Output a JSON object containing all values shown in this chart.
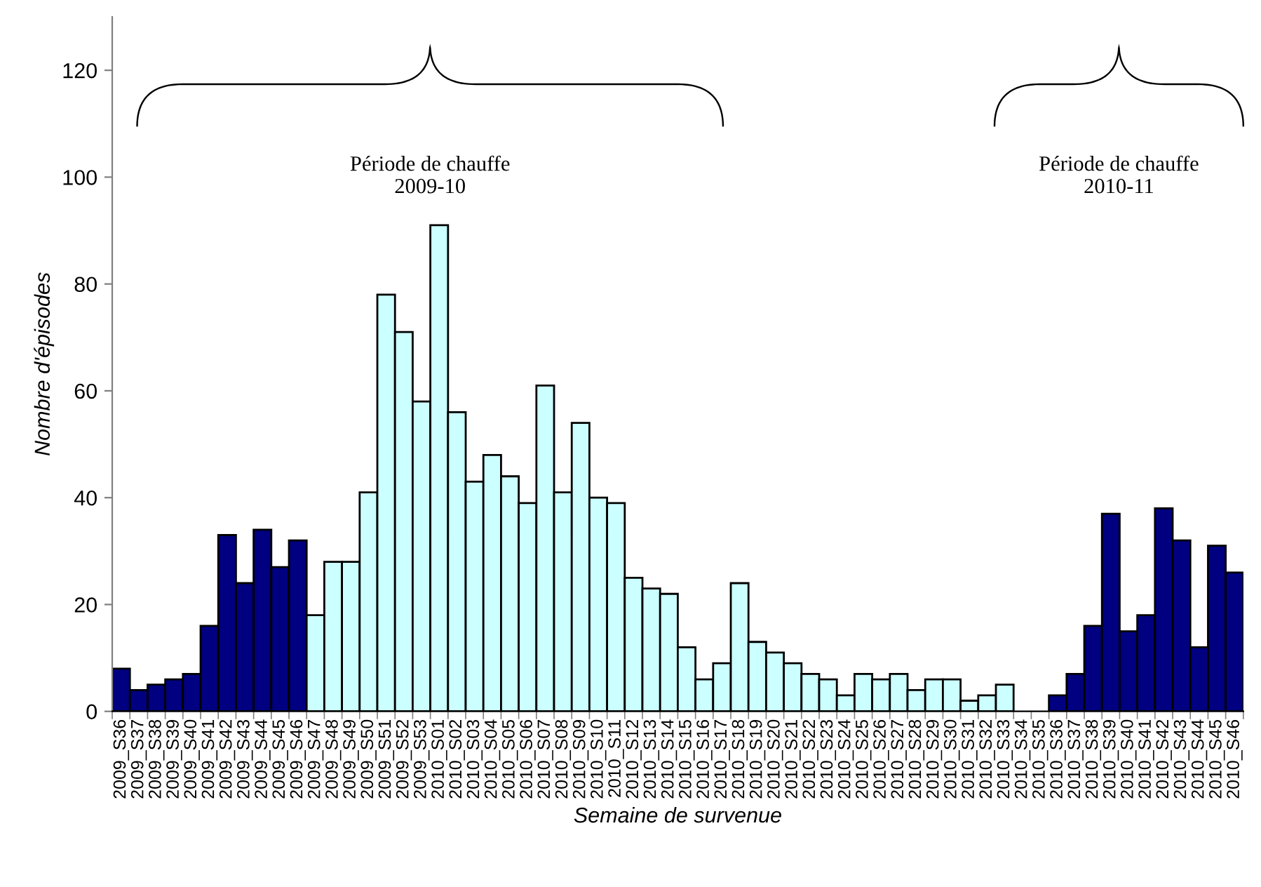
{
  "chart_data": {
    "type": "bar",
    "xlabel": "Semaine de survenue",
    "ylabel": "Nombre d'épisodes",
    "categories": [
      "2009_S36",
      "2009_S37",
      "2009_S38",
      "2009_S39",
      "2009_S40",
      "2009_S41",
      "2009_S42",
      "2009_S43",
      "2009_S44",
      "2009_S45",
      "2009_S46",
      "2009_S47",
      "2009_S48",
      "2009_S49",
      "2009_S50",
      "2009_S51",
      "2009_S52",
      "2009_S53",
      "2010_S01",
      "2010_S02",
      "2010_S03",
      "2010_S04",
      "2010_S05",
      "2010_S06",
      "2010_S07",
      "2010_S08",
      "2010_S09",
      "2010_S10",
      "2010_S11",
      "2010_S12",
      "2010_S13",
      "2010_S14",
      "2010_S15",
      "2010_S16",
      "2010_S17",
      "2010_S18",
      "2010_S19",
      "2010_S20",
      "2010_S21",
      "2010_S22",
      "2010_S23",
      "2010_S24",
      "2010_S25",
      "2010_S26",
      "2010_S27",
      "2010_S28",
      "2010_S29",
      "2010_S30",
      "2010_S31",
      "2010_S32",
      "2010_S33",
      "2010_S34",
      "2010_S35",
      "2010_S36",
      "2010_S37",
      "2010_S38",
      "2010_S39",
      "2010_S40",
      "2010_S41",
      "2010_S42",
      "2010_S43",
      "2010_S44",
      "2010_S45",
      "2010_S46"
    ],
    "values": [
      8,
      4,
      5,
      6,
      7,
      16,
      33,
      24,
      34,
      27,
      32,
      18,
      28,
      28,
      41,
      78,
      71,
      58,
      91,
      56,
      43,
      48,
      44,
      39,
      61,
      41,
      54,
      40,
      39,
      25,
      23,
      22,
      12,
      6,
      9,
      24,
      13,
      11,
      9,
      7,
      6,
      3,
      7,
      6,
      7,
      4,
      6,
      6,
      2,
      3,
      5,
      null,
      null,
      3,
      7,
      16,
      37,
      15,
      18,
      38,
      32,
      12,
      31,
      26
    ],
    "colors": [
      "#000080",
      "#000080",
      "#000080",
      "#000080",
      "#000080",
      "#000080",
      "#000080",
      "#000080",
      "#000080",
      "#000080",
      "#000080",
      "#ccffff",
      "#ccffff",
      "#ccffff",
      "#ccffff",
      "#ccffff",
      "#ccffff",
      "#ccffff",
      "#ccffff",
      "#ccffff",
      "#ccffff",
      "#ccffff",
      "#ccffff",
      "#ccffff",
      "#ccffff",
      "#ccffff",
      "#ccffff",
      "#ccffff",
      "#ccffff",
      "#ccffff",
      "#ccffff",
      "#ccffff",
      "#ccffff",
      "#ccffff",
      "#ccffff",
      "#ccffff",
      "#ccffff",
      "#ccffff",
      "#ccffff",
      "#ccffff",
      "#ccffff",
      "#ccffff",
      "#ccffff",
      "#ccffff",
      "#ccffff",
      "#ccffff",
      "#ccffff",
      "#ccffff",
      "#ccffff",
      "#ccffff",
      "#ccffff",
      "#ccffff",
      "#ccffff",
      "#000080",
      "#000080",
      "#000080",
      "#000080",
      "#000080",
      "#000080",
      "#000080",
      "#000080",
      "#000080",
      "#000080",
      "#000080"
    ],
    "ylim": [
      0,
      130
    ],
    "yticks": [
      0,
      20,
      40,
      60,
      80,
      100,
      120
    ],
    "grid": false,
    "legend": false,
    "annotations": [
      "Période de chauffe\n2009-10",
      "Période de chauffe\n2010-11"
    ]
  }
}
